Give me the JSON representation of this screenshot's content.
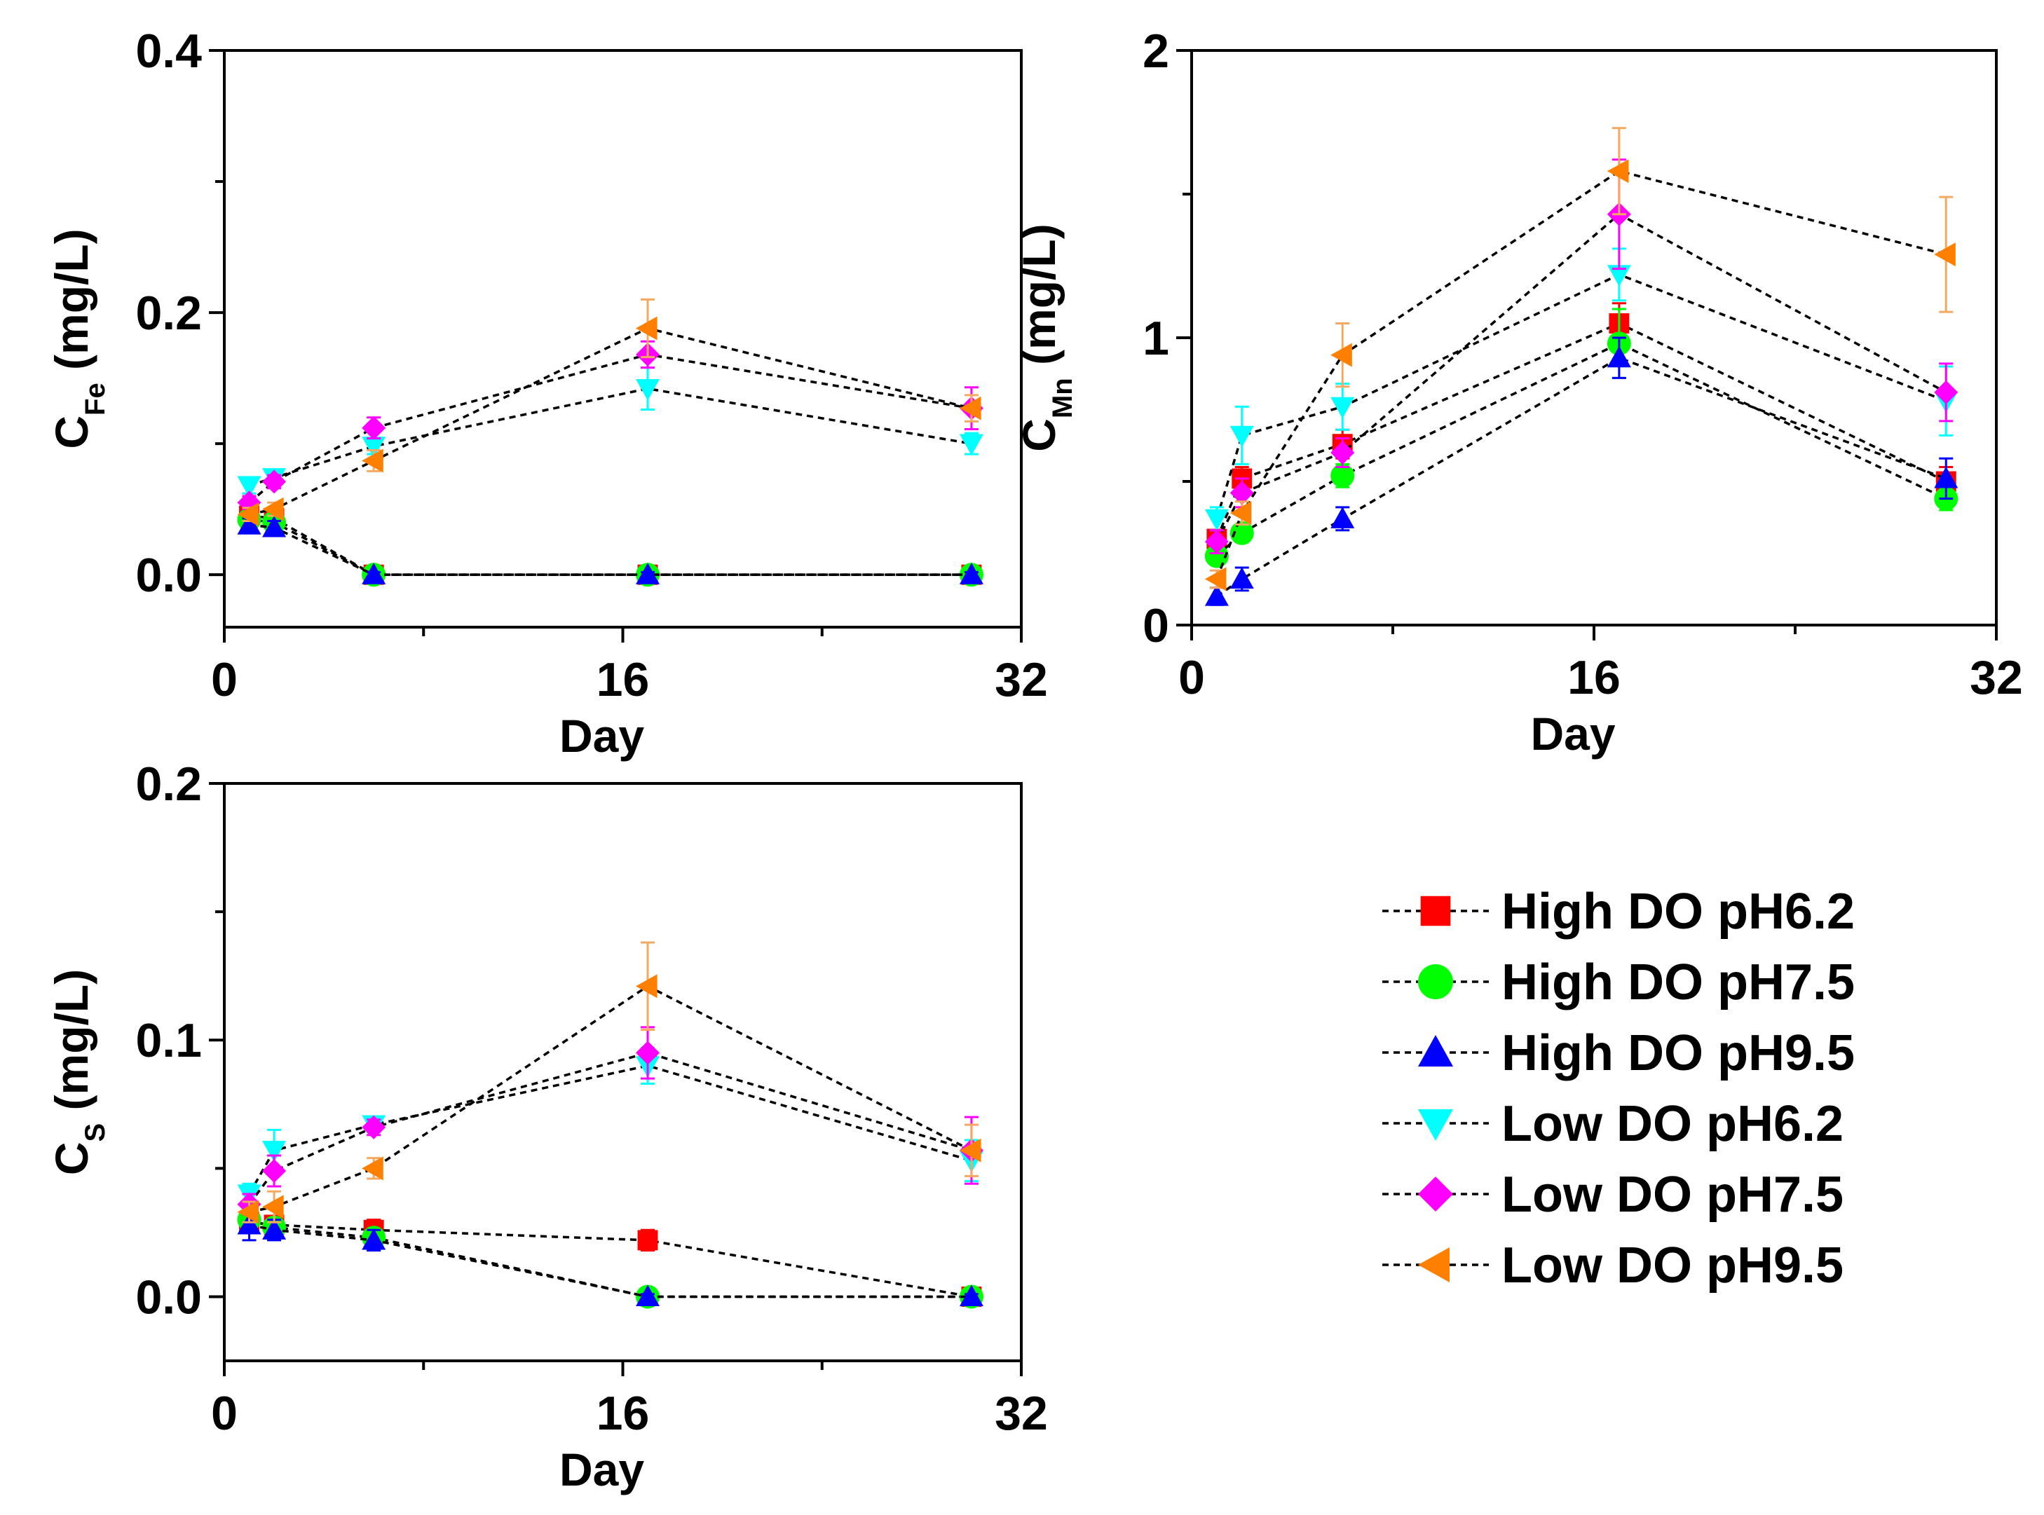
{
  "chart_data": [
    {
      "type": "line",
      "panel": "Fe",
      "ylabel": "C",
      "ylabel_sub": "Fe",
      "ylabel_unit": " (mg/L)",
      "xlabel": "Day",
      "xlim": [
        0,
        32
      ],
      "ylim": [
        -0.04,
        0.4
      ],
      "xticks": [
        0,
        16,
        32
      ],
      "xtick_labels": [
        "0",
        "16",
        "32"
      ],
      "yticks": [
        0.0,
        0.2,
        0.4
      ],
      "ytick_labels": [
        "0.0",
        "0.2",
        "0.4"
      ],
      "x": [
        1,
        2,
        6,
        17,
        30
      ],
      "series": [
        {
          "name": "High DO pH6.2",
          "values": [
            0.045,
            0.043,
            0.0,
            0.0,
            0.0
          ],
          "err": [
            0.004,
            0.004,
            0.002,
            0.002,
            0.002
          ]
        },
        {
          "name": "High DO pH7.5",
          "values": [
            0.042,
            0.04,
            0.0,
            0.0,
            0.0
          ],
          "err": [
            0.004,
            0.004,
            0.002,
            0.002,
            0.002
          ]
        },
        {
          "name": "High DO pH9.5",
          "values": [
            0.038,
            0.036,
            0.0,
            0.0,
            0.0
          ],
          "err": [
            0.005,
            0.005,
            0.002,
            0.002,
            0.002
          ]
        },
        {
          "name": "Low DO pH6.2",
          "values": [
            0.068,
            0.074,
            0.098,
            0.142,
            0.1
          ],
          "err": [
            0.006,
            0.006,
            0.006,
            0.016,
            0.008
          ]
        },
        {
          "name": "Low DO pH7.5",
          "values": [
            0.055,
            0.071,
            0.112,
            0.168,
            0.127
          ],
          "err": [
            0.005,
            0.005,
            0.008,
            0.01,
            0.016
          ]
        },
        {
          "name": "Low DO pH9.5",
          "values": [
            0.046,
            0.05,
            0.087,
            0.188,
            0.127
          ],
          "err": [
            0.005,
            0.005,
            0.008,
            0.022,
            0.01
          ]
        }
      ]
    },
    {
      "type": "line",
      "panel": "Mn",
      "ylabel": "C",
      "ylabel_sub": "Mn",
      "ylabel_unit": " (mg/L)",
      "xlabel": "Day",
      "xlim": [
        0,
        32
      ],
      "ylim": [
        0,
        2
      ],
      "xticks": [
        0,
        16,
        32
      ],
      "xtick_labels": [
        "0",
        "16",
        "32"
      ],
      "yticks": [
        0,
        1,
        2
      ],
      "ytick_labels": [
        "0",
        "1",
        "2"
      ],
      "x": [
        1,
        2,
        6,
        17,
        30
      ],
      "series": [
        {
          "name": "High DO pH6.2",
          "values": [
            0.3,
            0.51,
            0.63,
            1.05,
            0.5
          ],
          "err": [
            0.03,
            0.04,
            0.05,
            0.07,
            0.05
          ]
        },
        {
          "name": "High DO pH7.5",
          "values": [
            0.24,
            0.32,
            0.52,
            0.98,
            0.44
          ],
          "err": [
            0.03,
            0.03,
            0.04,
            0.12,
            0.04
          ]
        },
        {
          "name": "High DO pH9.5",
          "values": [
            0.1,
            0.16,
            0.37,
            0.93,
            0.51
          ],
          "err": [
            0.03,
            0.04,
            0.04,
            0.07,
            0.07
          ]
        },
        {
          "name": "Low DO pH6.2",
          "values": [
            0.37,
            0.66,
            0.76,
            1.22,
            0.78
          ],
          "err": [
            0.04,
            0.1,
            0.08,
            0.09,
            0.12
          ]
        },
        {
          "name": "Low DO pH7.5",
          "values": [
            0.29,
            0.46,
            0.6,
            1.43,
            0.81
          ],
          "err": [
            0.04,
            0.05,
            0.05,
            0.19,
            0.1
          ]
        },
        {
          "name": "Low DO pH9.5",
          "values": [
            0.16,
            0.39,
            0.94,
            1.58,
            1.29
          ],
          "err": [
            0.03,
            0.04,
            0.11,
            0.15,
            0.2
          ]
        }
      ]
    },
    {
      "type": "line",
      "panel": "S",
      "ylabel": "C",
      "ylabel_sub": "S",
      "ylabel_unit": " (mg/L)",
      "xlabel": "Day",
      "xlim": [
        0,
        32
      ],
      "ylim": [
        -0.025,
        0.2
      ],
      "xticks": [
        0,
        16,
        32
      ],
      "xtick_labels": [
        "0",
        "16",
        "32"
      ],
      "yticks": [
        0.0,
        0.1,
        0.2
      ],
      "ytick_labels": [
        "0.0",
        "0.1",
        "0.2"
      ],
      "x": [
        1,
        2,
        6,
        17,
        30
      ],
      "series": [
        {
          "name": "High DO pH6.2",
          "values": [
            0.029,
            0.028,
            0.026,
            0.022,
            0.0
          ],
          "err": [
            0.003,
            0.003,
            0.004,
            0.004,
            0.001
          ]
        },
        {
          "name": "High DO pH7.5",
          "values": [
            0.03,
            0.027,
            0.023,
            0.0,
            0.0
          ],
          "err": [
            0.003,
            0.003,
            0.003,
            0.001,
            0.001
          ]
        },
        {
          "name": "High DO pH9.5",
          "values": [
            0.028,
            0.026,
            0.022,
            0.0,
            0.0
          ],
          "err": [
            0.006,
            0.004,
            0.004,
            0.001,
            0.001
          ]
        },
        {
          "name": "Low DO pH6.2",
          "values": [
            0.04,
            0.057,
            0.067,
            0.09,
            0.053
          ],
          "err": [
            0.004,
            0.008,
            0.003,
            0.007,
            0.008
          ]
        },
        {
          "name": "Low DO pH7.5",
          "values": [
            0.036,
            0.049,
            0.066,
            0.095,
            0.057
          ],
          "err": [
            0.004,
            0.006,
            0.003,
            0.01,
            0.013
          ]
        },
        {
          "name": "Low DO pH9.5",
          "values": [
            0.033,
            0.035,
            0.05,
            0.121,
            0.057
          ],
          "err": [
            0.004,
            0.006,
            0.004,
            0.017,
            0.01
          ]
        }
      ]
    }
  ],
  "legend": {
    "items": [
      {
        "label": "High DO pH6.2",
        "marker": "square",
        "color": "#ff0000"
      },
      {
        "label": "High DO pH7.5",
        "marker": "circle",
        "color": "#00ff00"
      },
      {
        "label": "High DO pH9.5",
        "marker": "triangle-up",
        "color": "#0000ff"
      },
      {
        "label": "Low DO pH6.2",
        "marker": "triangle-down",
        "color": "#00ffff"
      },
      {
        "label": "Low DO pH7.5",
        "marker": "diamond",
        "color": "#ff00ff"
      },
      {
        "label": "Low DO pH9.5",
        "marker": "triangle-left",
        "color": "#ff8000"
      }
    ]
  },
  "colors": {
    "line": "#000000",
    "errorbar_orange": "#f5a960",
    "errorbar_default": "#808080"
  }
}
